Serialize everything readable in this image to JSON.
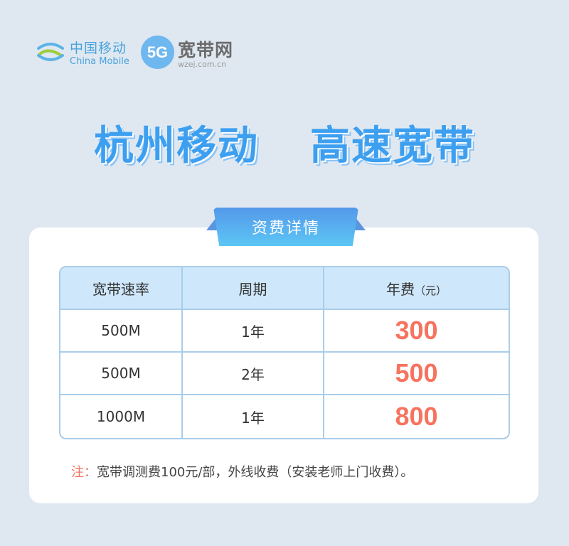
{
  "logos": {
    "china_mobile_zh": "中国移动",
    "china_mobile_en": "China Mobile",
    "badge_5g": "5G",
    "site_zh": "宽带网",
    "site_domain": "wzej.com.cn"
  },
  "headline": {
    "left": "杭州移动",
    "right": "高速宽带"
  },
  "section_title": "资费详情",
  "table": {
    "headers": [
      "宽带速率",
      "周期",
      "年费"
    ],
    "fee_unit": "（元）",
    "rows": [
      {
        "speed": "500M",
        "period": "1年",
        "price": "300"
      },
      {
        "speed": "500M",
        "period": "2年",
        "price": "500"
      },
      {
        "speed": "1000M",
        "period": "1年",
        "price": "800"
      }
    ]
  },
  "note": {
    "label": "注：",
    "text": "宽带调测费100元/部，外线收费（安装老师上门收费）。"
  },
  "colors": {
    "accent": "#3d9ff0",
    "price": "#f6735f",
    "background": "#dfe8f1"
  }
}
